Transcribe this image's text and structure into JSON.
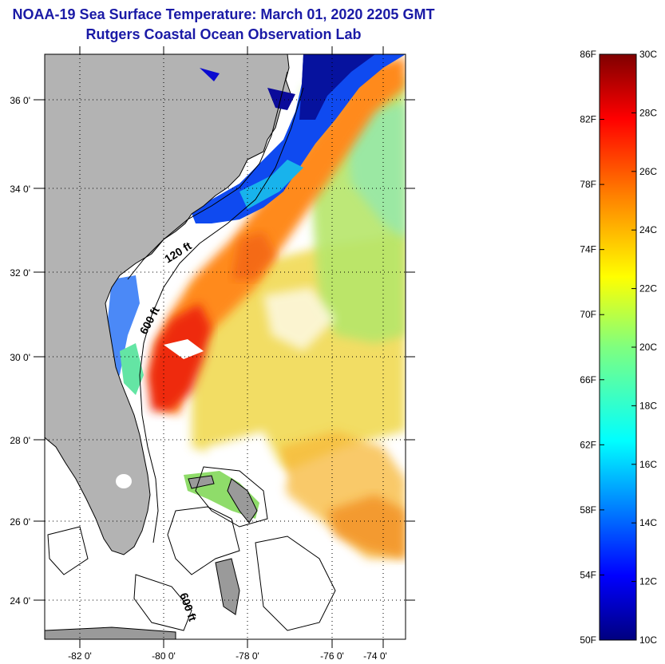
{
  "header": {
    "title": "NOAA-19 Sea Surface Temperature:  March 01, 2020 2205 GMT",
    "subtitle": "Rutgers Coastal Ocean Observation Lab"
  },
  "map": {
    "lat_ticks": [
      "36 0'",
      "34 0'",
      "32 0'",
      "30 0'",
      "28 0'",
      "26 0'",
      "24 0'"
    ],
    "lon_ticks": [
      "-82 0'",
      "-80 0'",
      "-78 0'",
      "-76 0'",
      "-74 0'"
    ],
    "isobath_labels": [
      "120 ft",
      "600 ft",
      "600 ft"
    ],
    "colors": {
      "land": "#b3b3b3",
      "cloud": "#ffffff",
      "contour": "#000000"
    }
  },
  "colorbar": {
    "fahrenheit_labels": [
      "86F",
      "82F",
      "78F",
      "74F",
      "70F",
      "66F",
      "62F",
      "58F",
      "54F",
      "50F"
    ],
    "celsius_labels": [
      "30C",
      "28C",
      "26C",
      "24C",
      "22C",
      "20C",
      "18C",
      "16C",
      "14C",
      "12C",
      "10C"
    ],
    "colormap": [
      "#00007f",
      "#0000ff",
      "#007fff",
      "#00ffff",
      "#7fff7f",
      "#ffff00",
      "#ff7f00",
      "#ff0000",
      "#7f0000"
    ]
  }
}
